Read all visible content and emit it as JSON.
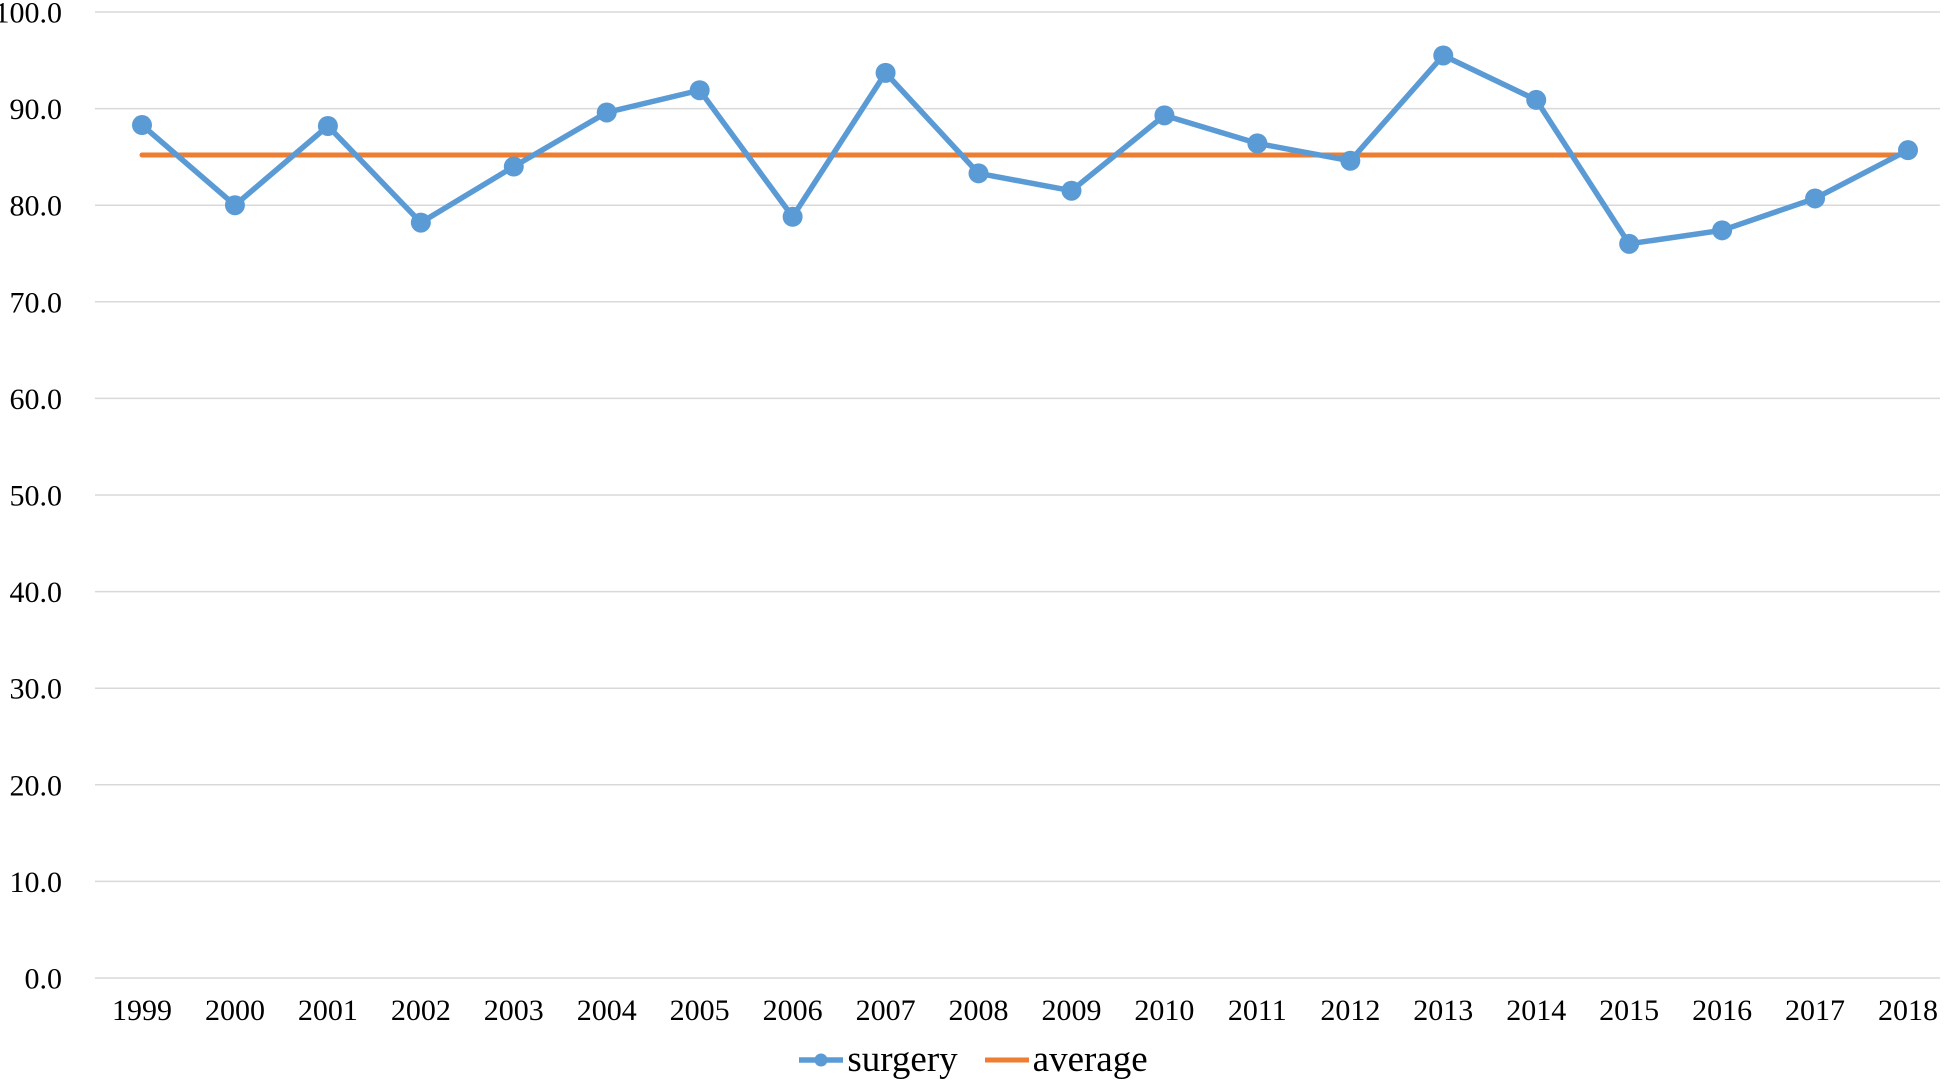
{
  "chart_data": {
    "type": "line",
    "title": "",
    "xlabel": "",
    "ylabel": "",
    "categories": [
      "1999",
      "2000",
      "2001",
      "2002",
      "2003",
      "2004",
      "2005",
      "2006",
      "2007",
      "2008",
      "2009",
      "2010",
      "2011",
      "2012",
      "2013",
      "2014",
      "2015",
      "2016",
      "2017",
      "2018"
    ],
    "series": [
      {
        "name": "surgery",
        "color": "#5B9BD5",
        "marker": "circle",
        "values": [
          88.3,
          80.0,
          88.2,
          78.2,
          84.0,
          89.6,
          91.9,
          78.8,
          93.7,
          83.3,
          81.5,
          89.3,
          86.4,
          84.6,
          95.5,
          90.9,
          76.0,
          77.4,
          80.7,
          85.7
        ]
      },
      {
        "name": "average",
        "color": "#ED7D31",
        "marker": "none",
        "values": [
          85.2,
          85.2,
          85.2,
          85.2,
          85.2,
          85.2,
          85.2,
          85.2,
          85.2,
          85.2,
          85.2,
          85.2,
          85.2,
          85.2,
          85.2,
          85.2,
          85.2,
          85.2,
          85.2,
          85.2
        ]
      }
    ],
    "ylim": [
      0,
      100
    ],
    "ytick_labels": [
      "0.0",
      "10.0",
      "20.0",
      "30.0",
      "40.0",
      "50.0",
      "60.0",
      "70.0",
      "80.0",
      "90.0",
      "100.0"
    ],
    "grid": true,
    "grid_color": "#D9D9D9",
    "text_color": "#000000",
    "legend_position": "bottom"
  }
}
